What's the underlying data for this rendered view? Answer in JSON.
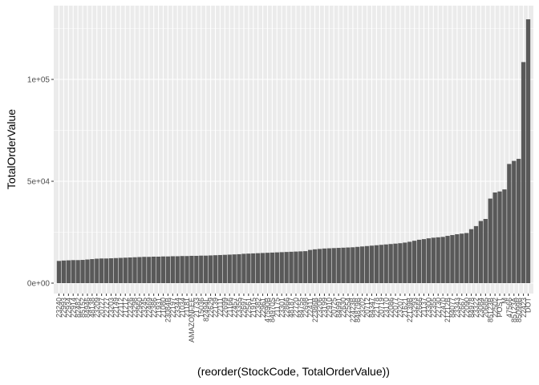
{
  "chart_data": {
    "type": "bar",
    "x_label": "(reorder(StockCode, TotalOrderValue))",
    "y_label": "TotalOrderValue",
    "color": "#595959",
    "grid": true,
    "ylim": [
      -5118,
      136220
    ],
    "yticks": [
      {
        "value": 0,
        "label": "0e+00"
      },
      {
        "value": 50000,
        "label": "5e+04"
      },
      {
        "value": 100000,
        "label": "1e+05"
      }
    ],
    "minor_yticks": [
      25000,
      75000,
      125000
    ],
    "categories": [
      "23240",
      "22993",
      "22934",
      "22914",
      "82482",
      "85152",
      "84946",
      "48138",
      "23209",
      "20727",
      "22727",
      "23203",
      "22149",
      "22112",
      "21212",
      "22326",
      "23298",
      "22960",
      "23245",
      "22469",
      "22386",
      "21931",
      "21080",
      "23084B",
      "22197",
      "23344",
      "21034",
      "21181",
      "AMAZONFEE",
      "21733",
      "15036",
      "82494L",
      "22629",
      "22139",
      "22111",
      "22699",
      "21166",
      "22457",
      "23355",
      "22697",
      "22561",
      "21915",
      "22382",
      "22961",
      "47590B",
      "84970S",
      "21175",
      "23301",
      "22866",
      "48187",
      "22720",
      "84755",
      "22698",
      "22411",
      "22386B",
      "23206",
      "23199",
      "22910",
      "20725",
      "84991",
      "22630",
      "22554",
      "22423B",
      "84879B",
      "23202",
      "20712",
      "84347",
      "22178",
      "20719",
      "23170",
      "22086",
      "22077",
      "23207",
      "21621",
      "22139B",
      "23293",
      "22666",
      "21137",
      "23300",
      "22355",
      "22730",
      "22470",
      "21212B",
      "84077",
      "23343",
      "22667",
      "22090",
      "84978",
      "23322",
      "23084",
      "20685",
      "85123B",
      "22502",
      "POST",
      "M",
      "47566",
      "85123A",
      "85099B",
      "22423",
      "DOT"
    ],
    "values": [
      10900,
      11100,
      11200,
      11300,
      11300,
      11400,
      11600,
      11800,
      12000,
      12100,
      12100,
      12200,
      12300,
      12400,
      12500,
      12600,
      12700,
      12800,
      12900,
      12900,
      13000,
      13000,
      13100,
      13100,
      13200,
      13200,
      13300,
      13300,
      13400,
      13400,
      13500,
      13500,
      13600,
      13700,
      13800,
      13900,
      14000,
      14100,
      14200,
      14400,
      14500,
      14600,
      14700,
      14800,
      14900,
      15000,
      15100,
      15200,
      15300,
      15400,
      15500,
      15600,
      15700,
      16300,
      16600,
      16800,
      17000,
      17100,
      17200,
      17300,
      17400,
      17500,
      17600,
      17800,
      18000,
      18200,
      18400,
      18600,
      18800,
      19000,
      19200,
      19400,
      19600,
      19900,
      20300,
      20800,
      21300,
      21600,
      22000,
      22300,
      22500,
      22700,
      23200,
      23600,
      24000,
      24300,
      24600,
      26500,
      28000,
      30500,
      31500,
      41500,
      44500,
      45000,
      46000,
      58500,
      60000,
      61000,
      108500,
      129500
    ]
  }
}
